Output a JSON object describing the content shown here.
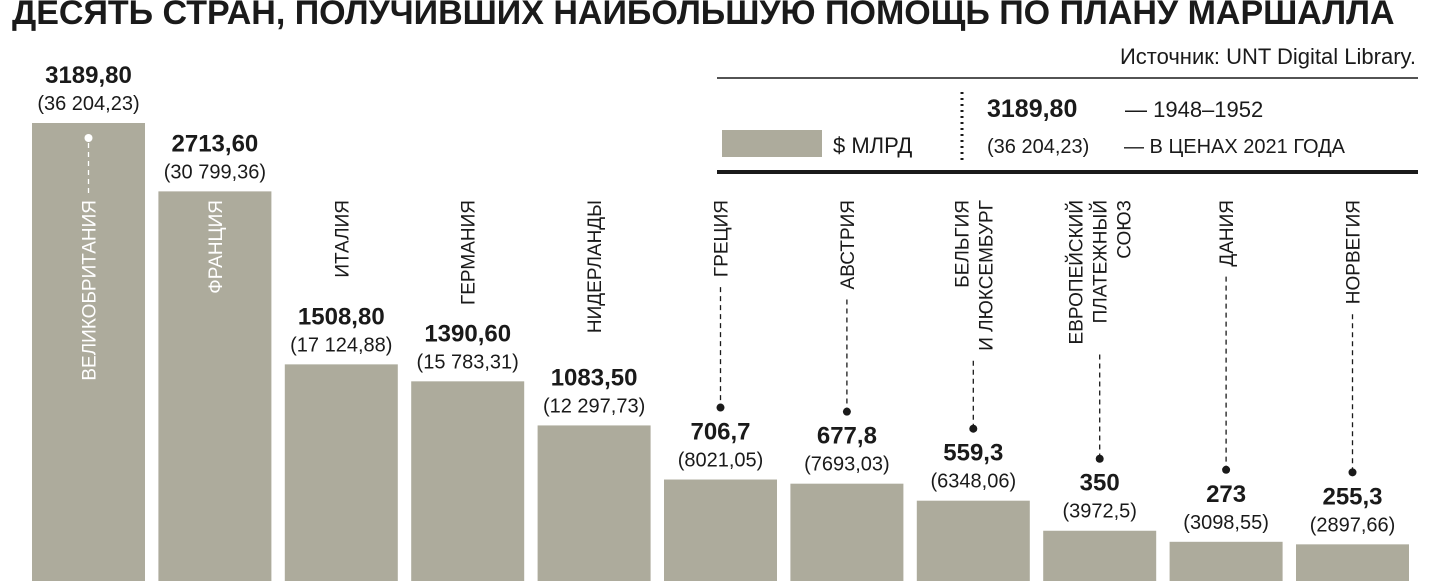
{
  "chart_data": {
    "type": "bar",
    "title": "ДЕСЯТЬ СТРАН, ПОЛУЧИВШИХ НАИБОЛЬШУЮ ПОМОЩЬ ПО ПЛАНУ МАРШАЛЛА",
    "source": "Источник: UNT Digital Library.",
    "legend": {
      "unit": "$ МЛРД",
      "example_value": "3189,80",
      "example_value_note": "— 1948–1952",
      "example_2021": "(36 204,23)",
      "example_2021_note": "— В ЦЕНАХ 2021 ГОДА"
    },
    "color": "#adab9c",
    "categories": [
      "ВЕЛИКОБРИТАНИЯ",
      "ФРАНЦИЯ",
      "ИТАЛИЯ",
      "ГЕРМАНИЯ",
      "НИДЕРЛАНДЫ",
      "ГРЕЦИЯ",
      "АВСТРИЯ",
      "БЕЛЬГИЯ\nИ ЛЮКСЕМБУРГ",
      "ЕВРОПЕЙСКИЙ\nПЛАТЕЖНЫЙ\nСОЮЗ",
      "ДАНИЯ",
      "НОРВЕГИЯ"
    ],
    "values": [
      3189.8,
      2713.6,
      1508.8,
      1390.6,
      1083.5,
      706.7,
      677.8,
      559.3,
      350,
      273,
      255.3
    ],
    "value_labels": [
      "3189,80",
      "2713,60",
      "1508,80",
      "1390,60",
      "1083,50",
      "706,7",
      "677,8",
      "559,3",
      "350",
      "273",
      "255,3"
    ],
    "values_2021": [
      36204.23,
      30799.36,
      17124.88,
      15783.31,
      12297.73,
      8021.05,
      7693.03,
      6348.06,
      3972.5,
      3098.55,
      2897.66
    ],
    "value_labels_2021": [
      "(36 204,23)",
      "(30 799,36)",
      "(17 124,88)",
      "(15 783,31)",
      "(12 297,73)",
      "(8021,05)",
      "(7693,03)",
      "(6348,06)",
      "(3972,5)",
      "(3098,55)",
      "(2897,66)"
    ]
  }
}
